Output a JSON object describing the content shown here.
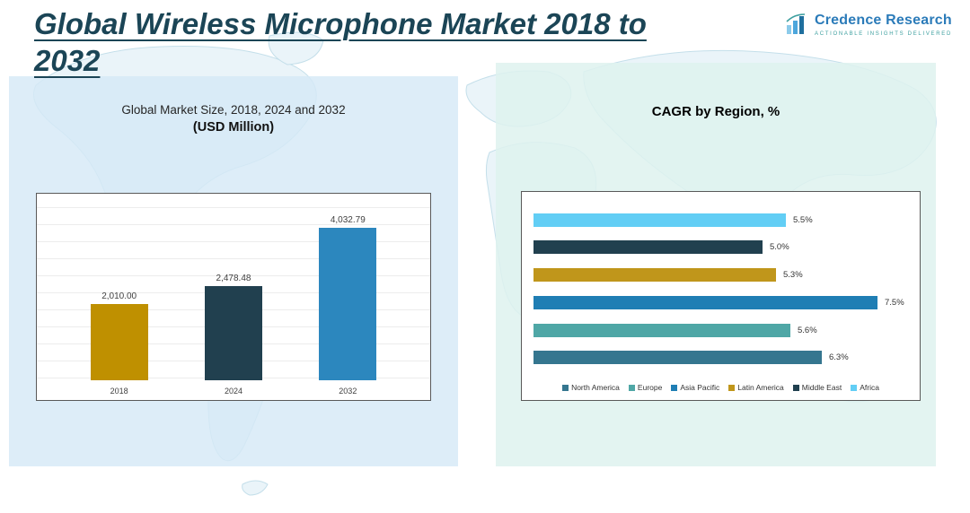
{
  "page": {
    "title_line1": "Global Wireless Microphone Market 2018 to",
    "title_line2": "2032"
  },
  "logo": {
    "name": "Credence Research",
    "tagline": "Actionable Insights Delivered",
    "brand_color": "#2B7BB9",
    "accent_color": "#3FA0A0"
  },
  "chart_data": [
    {
      "type": "bar",
      "title": "Global Market Size, 2018, 2024 and 2032",
      "subtitle": "(USD Million)",
      "categories": [
        "2018",
        "2024",
        "2032"
      ],
      "values": [
        2010.0,
        2478.48,
        4032.79
      ],
      "labels": [
        "2,010.00",
        "2,478.48",
        "4,032.79"
      ],
      "colors": [
        "#BF9000",
        "#21404F",
        "#2C87BE"
      ],
      "xlabel": "",
      "ylabel": "",
      "ylim": [
        0,
        4500
      ],
      "grid": true,
      "legend_position": "none"
    },
    {
      "type": "bar-horizontal",
      "title": "CAGR by Region, %",
      "categories": [
        "Africa",
        "Middle East",
        "Latin America",
        "Asia Pacific",
        "Europe",
        "North America"
      ],
      "values": [
        5.5,
        5.0,
        5.3,
        7.5,
        5.6,
        6.3
      ],
      "labels": [
        "5.5%",
        "5.0%",
        "5.3%",
        "7.5%",
        "5.6%",
        "6.3%"
      ],
      "colors": [
        "#62CEF5",
        "#21404F",
        "#C0961B",
        "#1F7EB4",
        "#4FA7A6",
        "#35768F"
      ],
      "xlabel": "",
      "ylabel": "",
      "xlim": [
        0,
        8
      ],
      "grid": false,
      "legend_position": "bottom",
      "legend": [
        "North America",
        "Europe",
        "Asia Pacific",
        "Latin America",
        "Middle East",
        "Africa"
      ],
      "legend_colors": [
        "#35768F",
        "#4FA7A6",
        "#1F7EB4",
        "#C0961B",
        "#21404F",
        "#62CEF5"
      ]
    }
  ]
}
